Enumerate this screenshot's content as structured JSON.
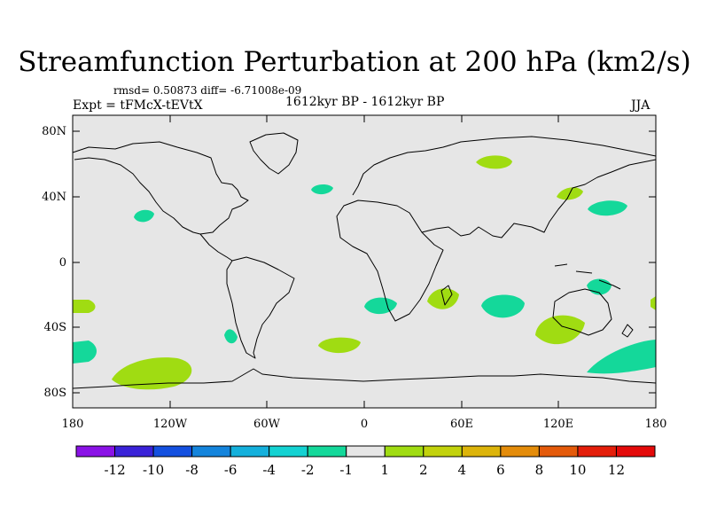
{
  "title": "Streamfunction Perturbation at 200 hPa (km2/s)",
  "stats": "rmsd= 0.50873 diff= -6.71008e-09",
  "experiment": "Expt = tFMcX-tEVtX",
  "period": "1612kyr BP - 1612kyr BP",
  "season": "JJA",
  "map": {
    "background": "#e6e6e6",
    "x_ticks": [
      "180",
      "120W",
      "60W",
      "0",
      "60E",
      "120E",
      "180"
    ],
    "y_ticks": [
      "80N",
      "40N",
      "0",
      "40S",
      "80S"
    ]
  },
  "colorbar": {
    "labels": [
      "-12",
      "-10",
      "-8",
      "-6",
      "-4",
      "-2",
      "-1",
      "1",
      "2",
      "4",
      "6",
      "8",
      "10",
      "12"
    ],
    "colors": [
      "#8a12e6",
      "#3a22d8",
      "#1450e0",
      "#1484dc",
      "#14b0dc",
      "#14d2d2",
      "#14d89a",
      "#e6e6e6",
      "#a0dc12",
      "#c2d20c",
      "#dcb40a",
      "#e48c0a",
      "#e45a0a",
      "#e41e0a",
      "#e40a0a"
    ]
  }
}
